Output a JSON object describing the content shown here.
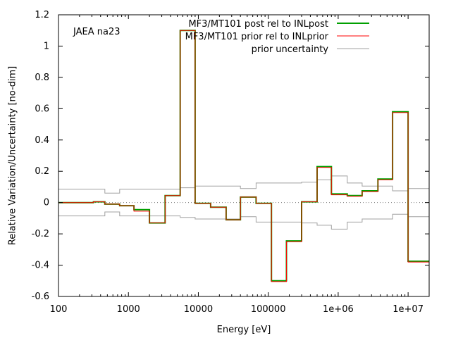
{
  "chart_data": {
    "type": "line",
    "annotation": "JAEA na23",
    "xlabel": "Energy [eV]",
    "ylabel": "Relative Variation/Uncertainty [no-dim]",
    "xscale": "log",
    "xlim": [
      100,
      20000000
    ],
    "ylim": [
      -0.6,
      1.2
    ],
    "xticks": [
      {
        "value": 100,
        "label": "100"
      },
      {
        "value": 1000,
        "label": "1000"
      },
      {
        "value": 10000,
        "label": "10000"
      },
      {
        "value": 100000,
        "label": "100000"
      },
      {
        "value": 1000000,
        "label": "1e+06"
      },
      {
        "value": 10000000,
        "label": "1e+07"
      }
    ],
    "yticks": [
      {
        "value": -0.6,
        "label": "-0.6"
      },
      {
        "value": -0.4,
        "label": "-0.4"
      },
      {
        "value": -0.2,
        "label": "-0.2"
      },
      {
        "value": 0,
        "label": "0"
      },
      {
        "value": 0.2,
        "label": "0.2"
      },
      {
        "value": 0.4,
        "label": "0.4"
      },
      {
        "value": 0.6,
        "label": "0.6"
      },
      {
        "value": 0.8,
        "label": "0.8"
      },
      {
        "value": 1,
        "label": "1"
      },
      {
        "value": 1.2,
        "label": "1.2"
      }
    ],
    "legend_position": "top-right",
    "zero_line": true,
    "series": [
      {
        "name": "MF3/MT101 post rel to INLpost",
        "color": "#00a000",
        "style": "step",
        "width": 2,
        "edges": [
          100,
          316,
          460,
          750,
          1200,
          2000,
          3350,
          5500,
          9000,
          15000,
          25000,
          40000,
          67000,
          111000,
          182000,
          300000,
          500000,
          800000,
          1350000,
          2200000,
          3700000,
          6000000,
          10000000,
          20000000
        ],
        "values": [
          0.0,
          0.005,
          -0.01,
          -0.02,
          -0.045,
          -0.13,
          0.045,
          1.1,
          -0.005,
          -0.03,
          -0.11,
          0.035,
          -0.005,
          -0.5,
          -0.245,
          0.005,
          0.23,
          0.055,
          0.045,
          0.075,
          0.15,
          0.58,
          -0.375
        ]
      },
      {
        "name": "MF3/MT101 prior rel to INLprior",
        "color": "#ff0000",
        "style": "step",
        "width": 1,
        "edges": [
          100,
          316,
          460,
          750,
          1200,
          2000,
          3350,
          5500,
          9000,
          15000,
          25000,
          40000,
          67000,
          111000,
          182000,
          300000,
          500000,
          800000,
          1350000,
          2200000,
          3700000,
          6000000,
          10000000,
          20000000
        ],
        "values": [
          0.0,
          0.005,
          -0.01,
          -0.02,
          -0.055,
          -0.13,
          0.045,
          1.1,
          -0.005,
          -0.03,
          -0.11,
          0.035,
          -0.005,
          -0.505,
          -0.25,
          0.005,
          0.225,
          0.05,
          0.04,
          0.07,
          0.145,
          0.575,
          -0.38
        ]
      },
      {
        "name": "prior uncertainty",
        "color": "#a0a0a0",
        "style": "step-band",
        "width": 1,
        "edges": [
          100,
          460,
          750,
          5500,
          9000,
          40000,
          67000,
          300000,
          500000,
          800000,
          1350000,
          2200000,
          6000000,
          10000000,
          20000000
        ],
        "values": [
          0.085,
          0.06,
          0.085,
          0.095,
          0.105,
          0.09,
          0.125,
          0.13,
          0.145,
          0.17,
          0.125,
          0.105,
          0.075,
          0.09
        ]
      }
    ]
  }
}
